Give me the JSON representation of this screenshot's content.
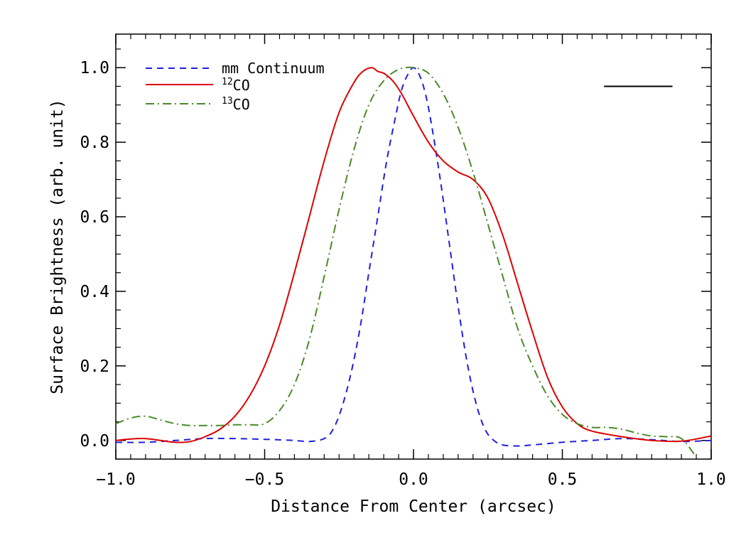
{
  "chart_data": {
    "type": "line",
    "xlabel": "Distance From Center (arcsec)",
    "ylabel": "Surface Brightness (arb. unit)",
    "xlim": [
      -1.0,
      1.0
    ],
    "ylim": [
      -0.05,
      1.09
    ],
    "xticks": [
      -1.0,
      -0.5,
      0.0,
      0.5,
      1.0
    ],
    "xtick_labels": [
      "−1.0",
      "−0.5",
      "0.0",
      "0.5",
      "1.0"
    ],
    "yticks": [
      0.0,
      0.2,
      0.4,
      0.6,
      0.8,
      1.0
    ],
    "ytick_labels": [
      "0.0",
      "0.2",
      "0.4",
      "0.6",
      "0.8",
      "1.0"
    ],
    "legend": {
      "placement": "top-left",
      "entries": [
        {
          "key": "cont",
          "prefix": "",
          "sup": "",
          "text": "mm Continuum"
        },
        {
          "key": "co12",
          "prefix": "",
          "sup": "12",
          "text": "CO"
        },
        {
          "key": "co13",
          "prefix": "",
          "sup": "13",
          "text": "CO"
        }
      ]
    },
    "scale_bar": {
      "x_range": [
        0.64,
        0.87
      ],
      "y": 0.95
    },
    "series": [
      {
        "name": "mm Continuum",
        "color": "#1f1fe0",
        "style": "dashed",
        "x": [
          -1.0,
          -0.9,
          -0.8,
          -0.7,
          -0.6,
          -0.5,
          -0.4,
          -0.35,
          -0.3,
          -0.27,
          -0.24,
          -0.21,
          -0.18,
          -0.15,
          -0.12,
          -0.09,
          -0.06,
          -0.04,
          -0.02,
          0.0,
          0.02,
          0.04,
          0.06,
          0.09,
          0.12,
          0.15,
          0.18,
          0.21,
          0.24,
          0.27,
          0.3,
          0.35,
          0.4,
          0.5,
          0.6,
          0.7,
          0.8,
          0.9,
          1.0
        ],
        "values": [
          -0.005,
          -0.005,
          0.0,
          0.005,
          0.005,
          0.003,
          0.0,
          -0.003,
          0.005,
          0.03,
          0.09,
          0.18,
          0.3,
          0.45,
          0.6,
          0.75,
          0.87,
          0.94,
          0.98,
          1.0,
          0.98,
          0.93,
          0.85,
          0.7,
          0.53,
          0.36,
          0.21,
          0.1,
          0.03,
          0.0,
          -0.012,
          -0.015,
          -0.012,
          -0.005,
          0.0,
          0.005,
          0.002,
          -0.003,
          0.0
        ]
      },
      {
        "name": "12CO",
        "color": "#dd0000",
        "style": "solid",
        "x": [
          -1.0,
          -0.95,
          -0.9,
          -0.85,
          -0.8,
          -0.75,
          -0.7,
          -0.65,
          -0.6,
          -0.55,
          -0.5,
          -0.45,
          -0.4,
          -0.35,
          -0.3,
          -0.25,
          -0.2,
          -0.17,
          -0.14,
          -0.12,
          -0.1,
          -0.07,
          -0.04,
          0.0,
          0.05,
          0.1,
          0.15,
          0.2,
          0.25,
          0.3,
          0.35,
          0.4,
          0.45,
          0.5,
          0.55,
          0.6,
          0.7,
          0.8,
          0.9,
          1.0
        ],
        "values": [
          0.0,
          0.004,
          0.005,
          0.0,
          -0.005,
          -0.003,
          0.01,
          0.03,
          0.065,
          0.12,
          0.2,
          0.31,
          0.45,
          0.6,
          0.75,
          0.88,
          0.96,
          0.99,
          1.0,
          0.99,
          0.985,
          0.965,
          0.93,
          0.87,
          0.8,
          0.75,
          0.72,
          0.7,
          0.65,
          0.55,
          0.42,
          0.29,
          0.17,
          0.09,
          0.045,
          0.025,
          0.01,
          0.0,
          -0.002,
          0.012
        ]
      },
      {
        "name": "13CO",
        "color": "#4a8a2a",
        "style": "dashdot",
        "x": [
          -1.0,
          -0.95,
          -0.9,
          -0.85,
          -0.8,
          -0.75,
          -0.7,
          -0.65,
          -0.6,
          -0.55,
          -0.5,
          -0.45,
          -0.4,
          -0.35,
          -0.3,
          -0.25,
          -0.2,
          -0.15,
          -0.1,
          -0.05,
          0.0,
          0.05,
          0.1,
          0.15,
          0.2,
          0.25,
          0.3,
          0.35,
          0.4,
          0.45,
          0.5,
          0.55,
          0.6,
          0.65,
          0.7,
          0.75,
          0.8,
          0.85,
          0.9,
          0.95
        ],
        "values": [
          0.045,
          0.06,
          0.065,
          0.055,
          0.045,
          0.04,
          0.04,
          0.04,
          0.042,
          0.042,
          0.045,
          0.08,
          0.15,
          0.27,
          0.44,
          0.62,
          0.78,
          0.9,
          0.965,
          0.995,
          1.0,
          0.985,
          0.93,
          0.84,
          0.72,
          0.58,
          0.44,
          0.3,
          0.2,
          0.12,
          0.07,
          0.045,
          0.035,
          0.035,
          0.03,
          0.02,
          0.012,
          0.01,
          0.005,
          -0.045
        ]
      }
    ]
  }
}
